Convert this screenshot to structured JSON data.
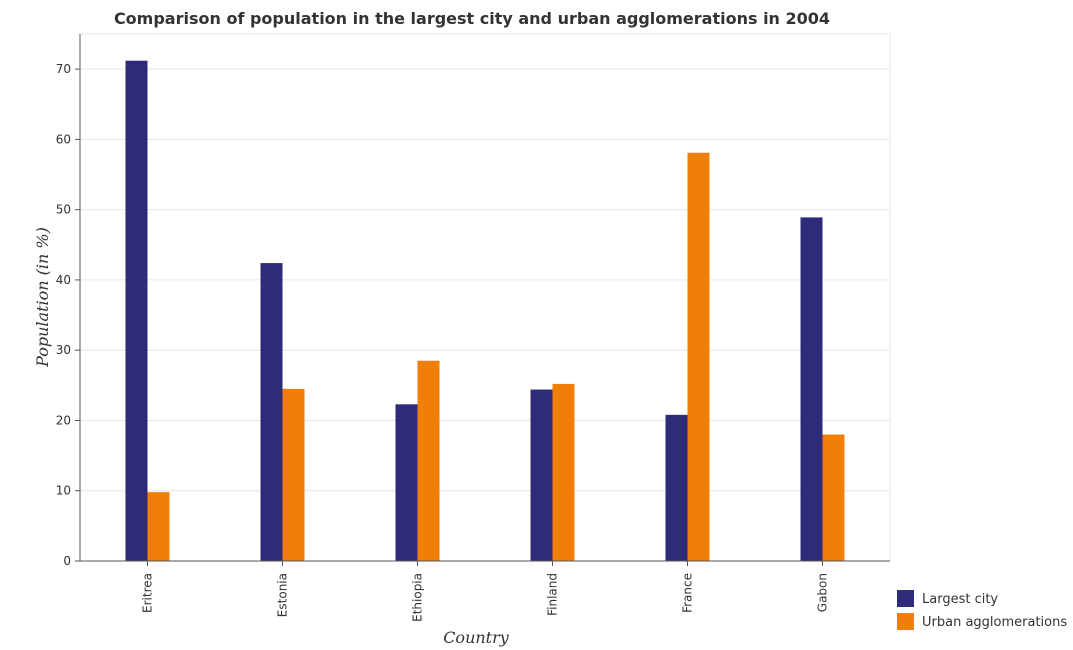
{
  "chart_data": {
    "type": "bar",
    "title": "Comparison of population in the largest city and urban agglomerations in 2004",
    "xlabel": "Country",
    "ylabel": "Population (in %)",
    "categories": [
      "Eritrea",
      "Estonia",
      "Ethiopia",
      "Finland",
      "France",
      "Gabon"
    ],
    "series": [
      {
        "name": "Largest city",
        "color": "#2e2b7a",
        "values": [
          71.2,
          42.4,
          22.3,
          24.4,
          20.8,
          48.9
        ]
      },
      {
        "name": "Urban agglomerations",
        "color": "#f07f0a",
        "values": [
          9.8,
          24.5,
          28.5,
          25.2,
          58.1,
          18.0
        ]
      }
    ],
    "ylim": [
      0,
      75
    ],
    "yticks": [
      0,
      10,
      20,
      30,
      40,
      50,
      60,
      70
    ],
    "grid": true,
    "legend_position": "bottom-right"
  }
}
